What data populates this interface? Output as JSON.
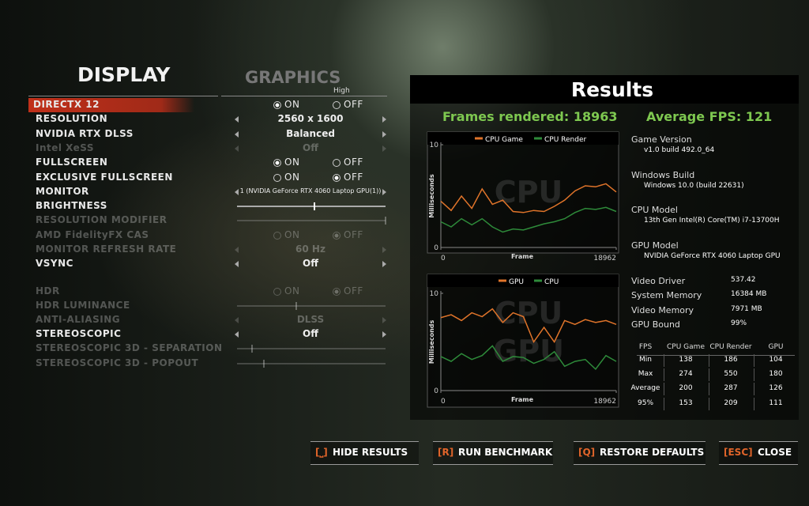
{
  "tabs": {
    "display": "DISPLAY",
    "graphics": "GRAPHICS",
    "preset": "High"
  },
  "settings": [
    {
      "label": "DIRECTX 12",
      "control": "radio",
      "options": [
        "ON",
        "OFF"
      ],
      "selected": 0,
      "enabled": true,
      "highlighted": true
    },
    {
      "label": "RESOLUTION",
      "control": "choice",
      "value": "2560 x 1600",
      "enabled": true
    },
    {
      "label": "NVIDIA RTX DLSS",
      "control": "choice",
      "value": "Balanced",
      "enabled": true
    },
    {
      "label": "Intel XeSS",
      "control": "choice",
      "value": "Off",
      "enabled": false
    },
    {
      "label": "FULLSCREEN",
      "control": "radio",
      "options": [
        "ON",
        "OFF"
      ],
      "selected": 0,
      "enabled": true
    },
    {
      "label": "EXCLUSIVE FULLSCREEN",
      "control": "radio",
      "options": [
        "ON",
        "OFF"
      ],
      "selected": 1,
      "enabled": true
    },
    {
      "label": "MONITOR",
      "control": "choice",
      "value": "1 (NVIDIA GeForce RTX 4060 Laptop GPU(1))",
      "enabled": true
    },
    {
      "label": "BRIGHTNESS",
      "control": "slider",
      "slider": 52,
      "enabled": true
    },
    {
      "label": "RESOLUTION MODIFIER",
      "control": "slider",
      "slider": 100,
      "enabled": false
    },
    {
      "label": "AMD FidelityFX CAS",
      "control": "radio",
      "options": [
        "ON",
        "OFF"
      ],
      "selected": 1,
      "enabled": false
    },
    {
      "label": "MONITOR REFRESH RATE",
      "control": "choice",
      "value": "60 Hz",
      "enabled": false
    },
    {
      "label": "VSYNC",
      "control": "choice",
      "value": "Off",
      "enabled": true
    },
    {
      "label": "HDR",
      "control": "radio",
      "options": [
        "ON",
        "OFF"
      ],
      "selected": 1,
      "enabled": false
    },
    {
      "label": "HDR LUMINANCE",
      "control": "slider",
      "slider": 40,
      "enabled": false
    },
    {
      "label": "ANTI-ALIASING",
      "control": "choice",
      "value": "DLSS",
      "enabled": false
    },
    {
      "label": "STEREOSCOPIC",
      "control": "choice",
      "value": "Off",
      "enabled": true
    },
    {
      "label": "STEREOSCOPIC 3D - SEPARATION",
      "control": "slider",
      "slider": 10,
      "enabled": false
    },
    {
      "label": "STEREOSCOPIC 3D - POPOUT",
      "control": "slider",
      "slider": 18,
      "enabled": false
    }
  ],
  "results": {
    "title": "Results",
    "frames": "Frames rendered: 18963",
    "average": "Average FPS: 121",
    "system": [
      {
        "label": "Game Version",
        "value": "v1.0 build 492.0_64"
      },
      {
        "label": "Windows Build",
        "value": "Windows 10.0 (build 22631)"
      },
      {
        "label": "CPU Model",
        "value": "13th Gen Intel(R) Core(TM) i7-13700H"
      },
      {
        "label": "GPU Model",
        "value": "NVIDIA GeForce RTX 4060 Laptop GPU"
      },
      {
        "label": "Video Driver",
        "value": "537.42"
      },
      {
        "label": "System Memory",
        "value": "16384 MB"
      },
      {
        "label": "Video Memory",
        "value": "7971 MB"
      },
      {
        "label": "GPU Bound",
        "value": "99%"
      }
    ],
    "table": {
      "header": [
        "FPS",
        "CPU Game",
        "CPU Render",
        "GPU"
      ],
      "rows": [
        [
          "Min",
          138,
          186,
          104
        ],
        [
          "Max",
          274,
          550,
          180
        ],
        [
          "Average",
          200,
          287,
          126
        ],
        [
          "95%",
          153,
          209,
          111
        ]
      ]
    },
    "charts": [
      {
        "type": "line",
        "watermark": [
          "CPU"
        ],
        "y_label": "Milliseconds",
        "x_label": "Frame",
        "xlim": [
          0,
          18962
        ],
        "ylim": [
          0,
          10
        ],
        "xticks": [
          0,
          18962
        ],
        "yticks": [
          0,
          10
        ],
        "x": [
          0,
          1115,
          2231,
          3346,
          4462,
          5577,
          6693,
          7808,
          8924,
          10039,
          11154,
          12270,
          13385,
          14501,
          15616,
          16732,
          17847,
          18962
        ],
        "series": [
          {
            "name": "CPU Game",
            "color": "#e0742a",
            "values": [
              4.5,
              3.6,
              5.0,
              3.8,
              5.7,
              4.2,
              4.6,
              3.5,
              3.4,
              3.6,
              3.5,
              4.0,
              4.6,
              5.5,
              6.0,
              5.9,
              6.2,
              5.4
            ]
          },
          {
            "name": "CPU Render",
            "color": "#2e8b3a",
            "values": [
              2.5,
              2.0,
              2.8,
              2.2,
              2.8,
              2.0,
              1.5,
              1.8,
              1.7,
              2.0,
              2.3,
              2.5,
              2.8,
              3.4,
              3.8,
              3.7,
              3.9,
              3.5
            ]
          }
        ]
      },
      {
        "type": "line",
        "watermark": [
          "CPU",
          "GPU"
        ],
        "y_label": "Milliseconds",
        "x_label": "Frame",
        "xlim": [
          0,
          18962
        ],
        "ylim": [
          0,
          10
        ],
        "xticks": [
          0,
          18962
        ],
        "yticks": [
          0,
          10
        ],
        "x": [
          0,
          1115,
          2231,
          3346,
          4462,
          5577,
          6693,
          7808,
          8924,
          10039,
          11154,
          12270,
          13385,
          14501,
          15616,
          16732,
          17847,
          18962
        ],
        "series": [
          {
            "name": "GPU",
            "color": "#e0742a",
            "values": [
              7.5,
              7.8,
              7.2,
              8.0,
              7.6,
              8.4,
              7.0,
              8.0,
              7.6,
              5.0,
              6.5,
              5.0,
              7.2,
              6.8,
              7.3,
              7.0,
              7.2,
              6.8
            ]
          },
          {
            "name": "CPU",
            "color": "#2e8b3a",
            "values": [
              3.5,
              3.0,
              3.8,
              3.2,
              3.6,
              4.6,
              3.0,
              3.5,
              3.4,
              2.8,
              3.2,
              4.0,
              2.5,
              3.0,
              3.2,
              2.2,
              3.6,
              3.0
            ]
          }
        ]
      }
    ]
  },
  "buttons": [
    {
      "key": "[⎵]",
      "label": "HIDE RESULTS"
    },
    {
      "key": "[R]",
      "label": "RUN BENCHMARK"
    },
    {
      "key": "[Q]",
      "label": "RESTORE DEFAULTS"
    },
    {
      "key": "[ESC]",
      "label": "CLOSE"
    }
  ]
}
